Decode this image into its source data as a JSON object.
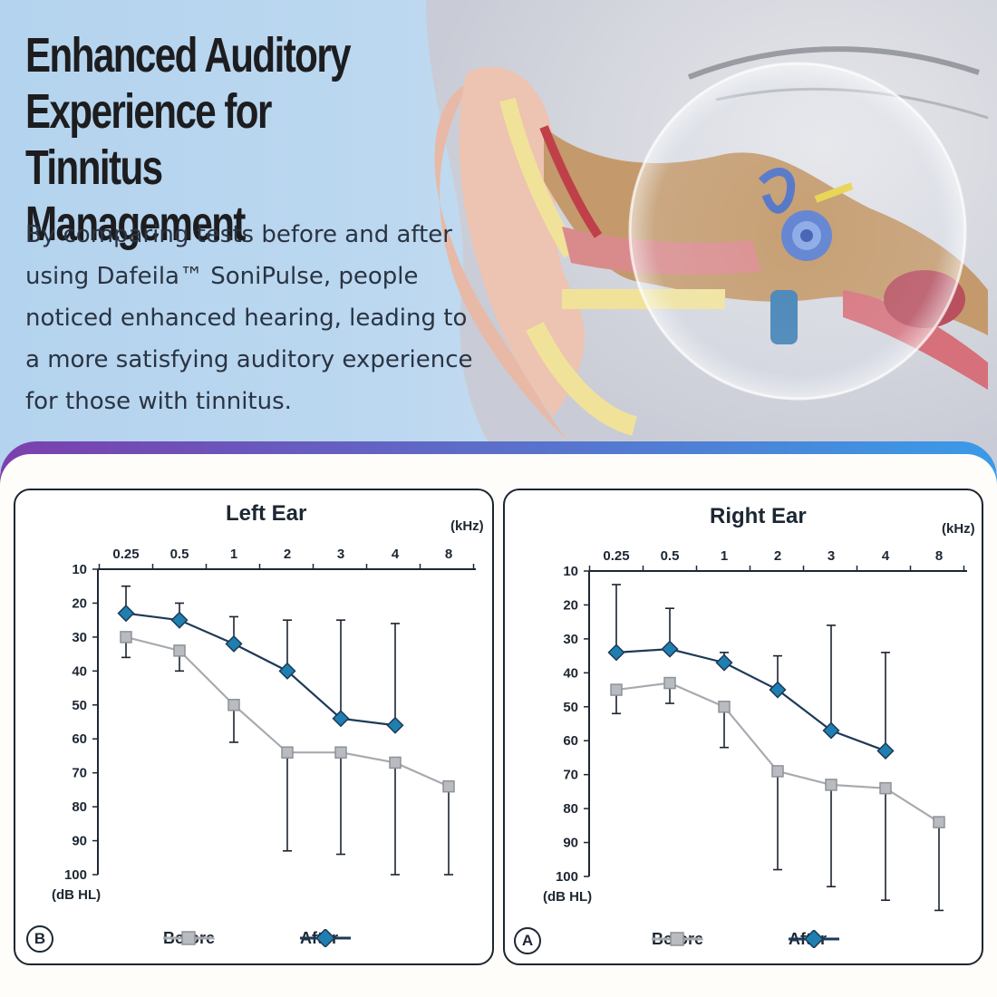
{
  "hero": {
    "title": "Enhanced Auditory\nExperience for Tinnitus\nManagement",
    "body": "By comparing tests before and after using Dafeila™ SoniPulse, people noticed enhanced hearing, leading to a more satisfying auditory experience for those with tinnitus."
  },
  "colors": {
    "before": "#a7abb0",
    "after": "#1f7fb0",
    "axis": "#1d2733",
    "accent_gradient": [
      "#7b3fae",
      "#3a9be8"
    ]
  },
  "chart_data": [
    {
      "type": "line",
      "title": "Left Ear",
      "badge": "B",
      "x_unit": "(kHz)",
      "y_unit": "(dB HL)",
      "categories": [
        "0.25",
        "0.5",
        "1",
        "2",
        "3",
        "4",
        "8"
      ],
      "ylim": [
        10,
        100
      ],
      "y_ticks": [
        "10",
        "20",
        "30",
        "40",
        "50",
        "60",
        "70",
        "80",
        "90",
        "100"
      ],
      "y_inverted": true,
      "grid": false,
      "legend_position": "bottom",
      "series": [
        {
          "name": "Before",
          "marker": "square",
          "values": [
            30,
            34,
            50,
            64,
            64,
            67,
            74
          ],
          "error_bar": [
            {
              "dir": "down",
              "to": 36
            },
            {
              "dir": "down",
              "to": 40
            },
            {
              "dir": "down",
              "to": 61
            },
            {
              "dir": "down",
              "to": 93
            },
            {
              "dir": "down",
              "to": 94
            },
            {
              "dir": "down",
              "to": 100
            },
            {
              "dir": "down",
              "to": 100
            }
          ]
        },
        {
          "name": "After",
          "marker": "diamond",
          "values": [
            23,
            25,
            32,
            40,
            54,
            56,
            null
          ],
          "error_bar": [
            {
              "dir": "up",
              "to": 15
            },
            {
              "dir": "up",
              "to": 20
            },
            {
              "dir": "up",
              "to": 24
            },
            {
              "dir": "up",
              "to": 25
            },
            {
              "dir": "up",
              "to": 25
            },
            {
              "dir": "up",
              "to": 26
            },
            null
          ]
        }
      ]
    },
    {
      "type": "line",
      "title": "Right Ear",
      "badge": "A",
      "x_unit": "(kHz)",
      "y_unit": "(dB HL)",
      "categories": [
        "0.25",
        "0.5",
        "1",
        "2",
        "3",
        "4",
        "8"
      ],
      "ylim": [
        10,
        100
      ],
      "y_ticks": [
        "10",
        "20",
        "30",
        "40",
        "50",
        "60",
        "70",
        "80",
        "90",
        "100"
      ],
      "y_inverted": true,
      "grid": false,
      "legend_position": "bottom",
      "series": [
        {
          "name": "Before",
          "marker": "square",
          "values": [
            45,
            43,
            50,
            69,
            73,
            74,
            84
          ],
          "error_bar": [
            {
              "dir": "down",
              "to": 52
            },
            {
              "dir": "down",
              "to": 49
            },
            {
              "dir": "down",
              "to": 62
            },
            {
              "dir": "down",
              "to": 98
            },
            {
              "dir": "down",
              "to": 103
            },
            {
              "dir": "down",
              "to": 107
            },
            {
              "dir": "down",
              "to": 110
            }
          ]
        },
        {
          "name": "After",
          "marker": "diamond",
          "values": [
            34,
            33,
            37,
            45,
            57,
            63,
            null
          ],
          "error_bar": [
            {
              "dir": "up",
              "to": 14
            },
            {
              "dir": "up",
              "to": 21
            },
            {
              "dir": "up",
              "to": 34
            },
            {
              "dir": "up",
              "to": 35
            },
            {
              "dir": "up",
              "to": 26
            },
            {
              "dir": "up",
              "to": 34
            },
            null
          ]
        }
      ]
    }
  ]
}
